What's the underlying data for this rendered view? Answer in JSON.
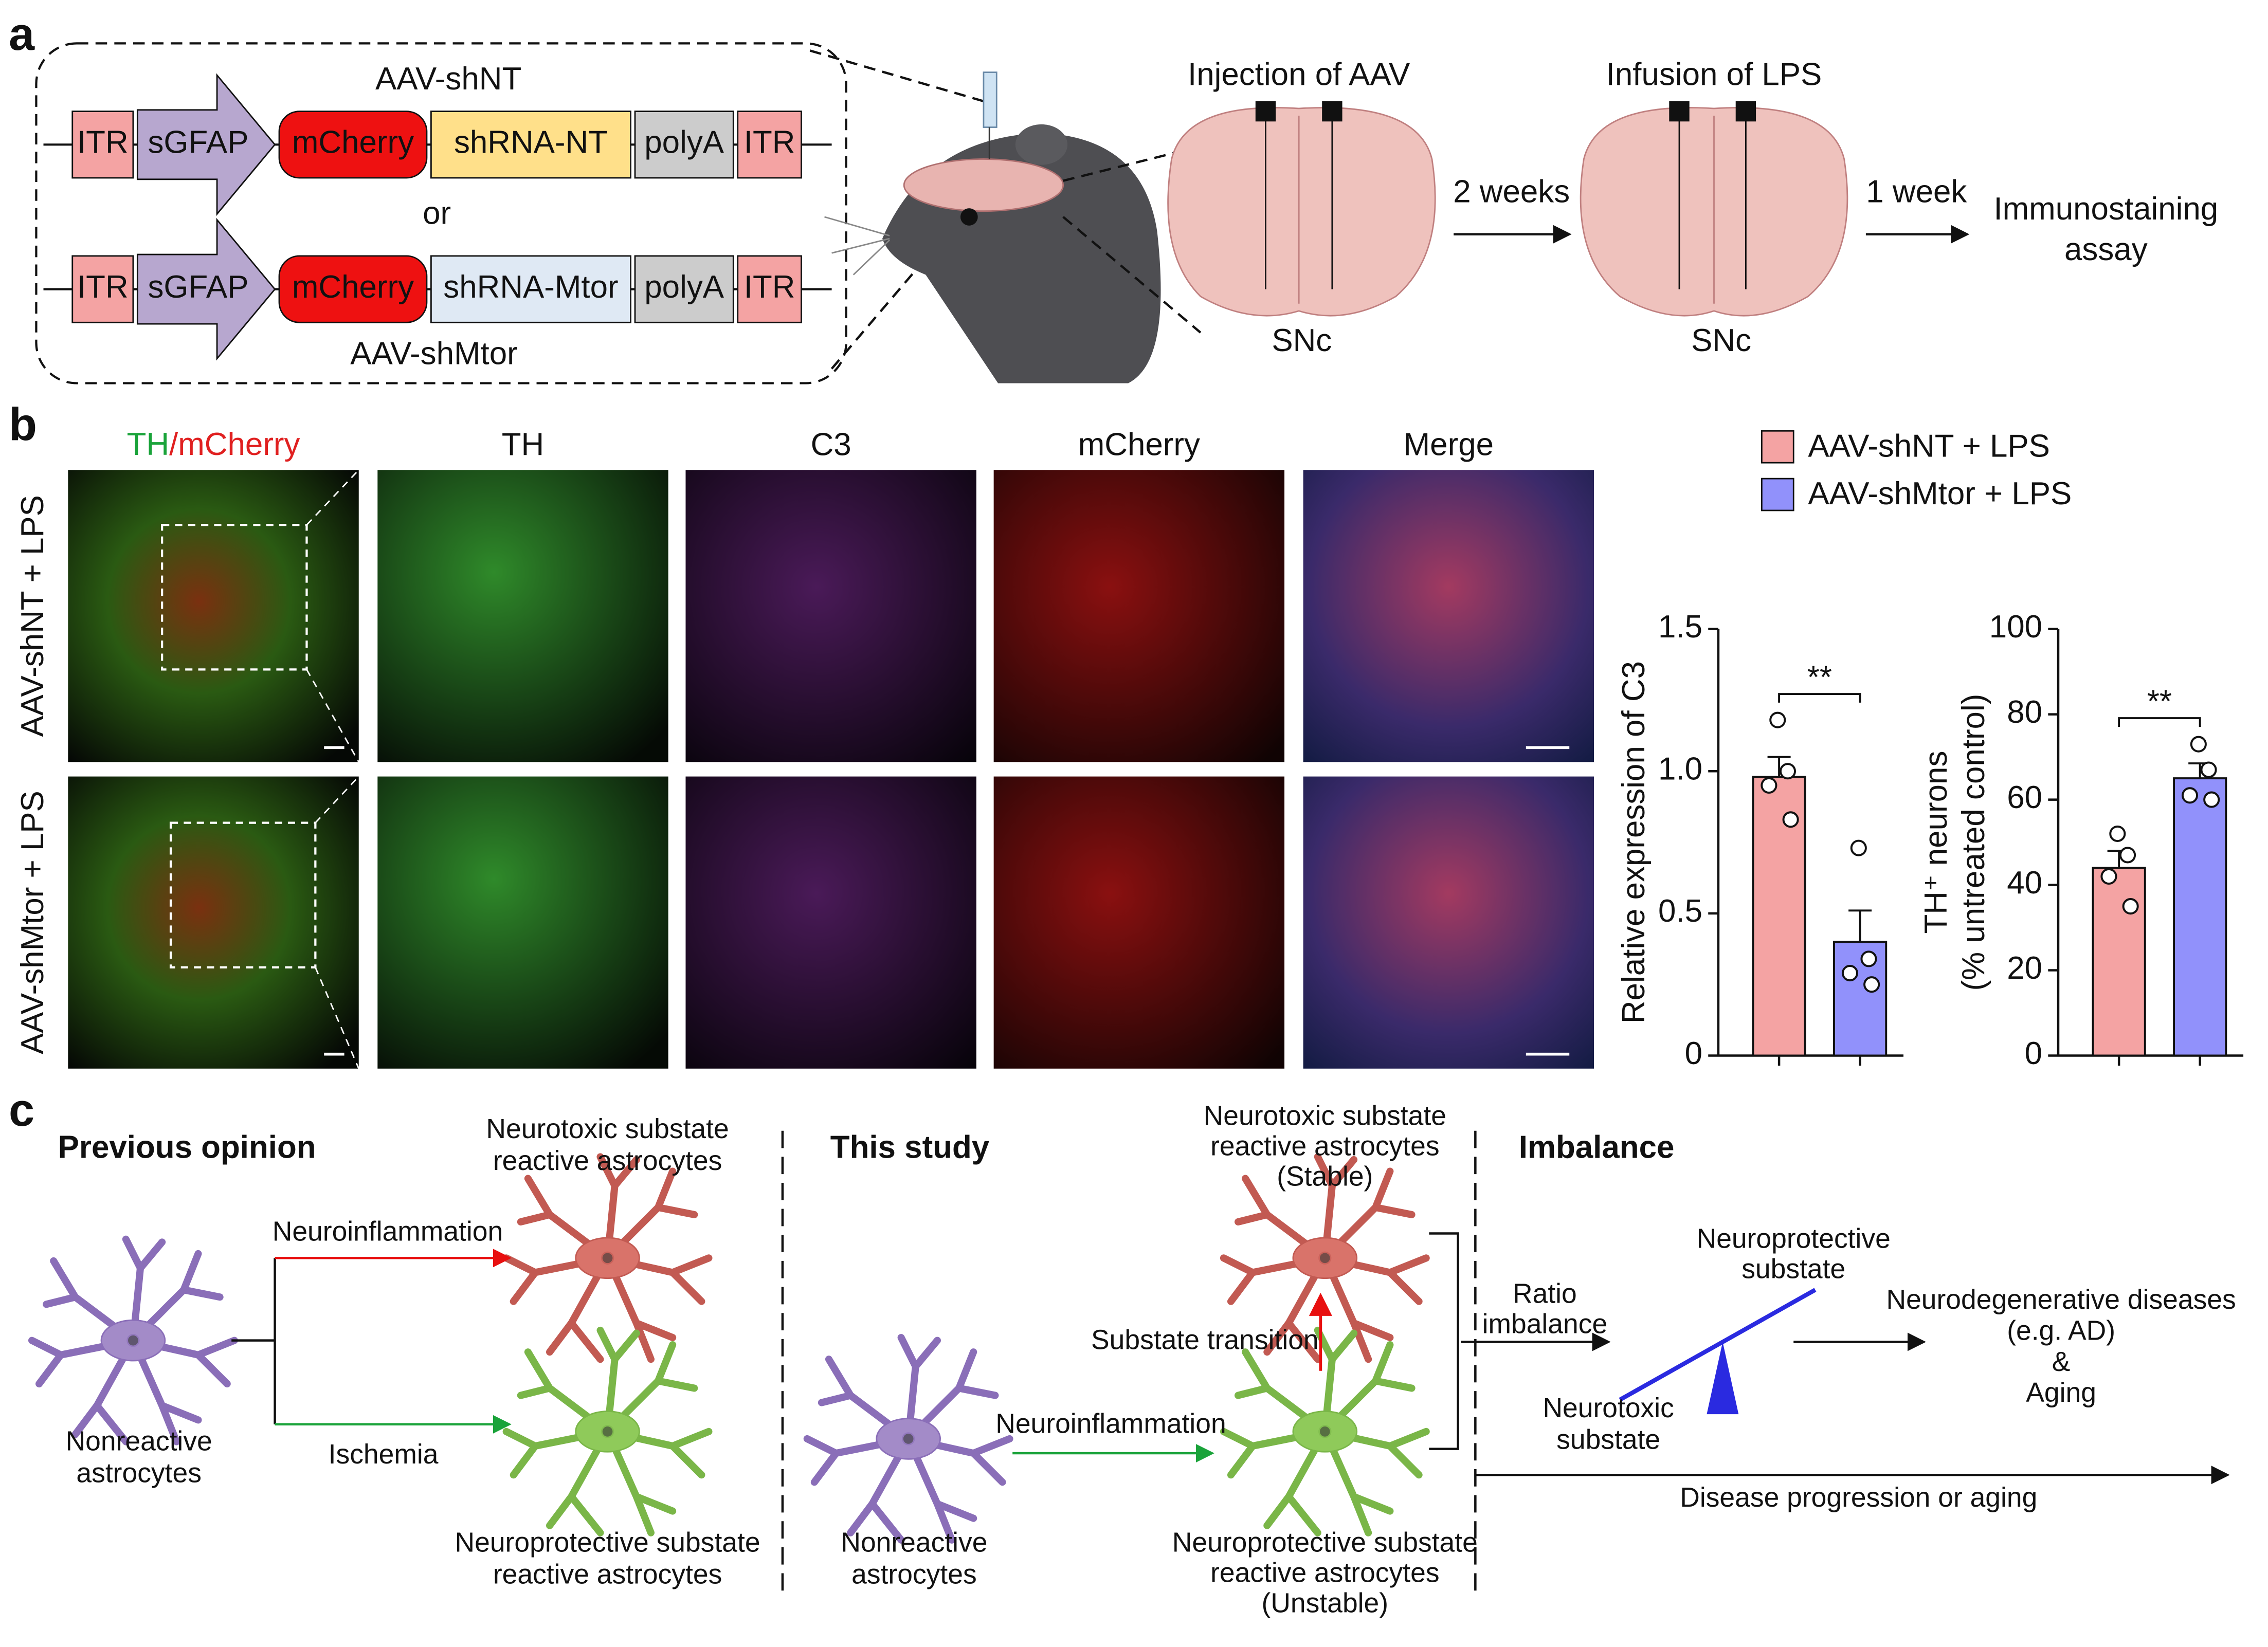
{
  "panel_a": {
    "label": "a",
    "constructs": [
      {
        "name": "AAV-shNT",
        "elements": [
          "ITR",
          "sGFAP",
          "mCherry",
          "shRNA-NT",
          "polyA",
          "ITR"
        ]
      },
      {
        "name": "AAV-shMtor",
        "elements": [
          "ITR",
          "sGFAP",
          "mCherry",
          "shRNA-Mtor",
          "polyA",
          "ITR"
        ]
      }
    ],
    "or": "or",
    "steps": [
      "Injection of AAV",
      "Infusion of LPS"
    ],
    "regions": [
      "SNc",
      "SNc"
    ],
    "intervals": [
      "2 weeks",
      "1 week"
    ],
    "readout": [
      "Immunostaining",
      "assay"
    ]
  },
  "panel_b": {
    "label": "b",
    "columns": [
      [
        "TH",
        "/",
        "mCherry"
      ],
      "TH",
      "C3",
      "mCherry",
      "Merge"
    ],
    "column_colors": [
      "#1aa33a",
      "#9c3ab0",
      "#e02020",
      "#111111"
    ],
    "rows": [
      "AAV-shNT + LPS",
      "AAV-shMtor + LPS"
    ],
    "legend": [
      {
        "name": "AAV-shNT + LPS",
        "color": "#f4a3a3"
      },
      {
        "name": "AAV-shMtor + LPS",
        "color": "#9191fb"
      }
    ]
  },
  "chart_data": [
    {
      "type": "bar",
      "ylabel": [
        "Relative expression of C3"
      ],
      "categories": [
        null,
        null
      ],
      "values": [
        0.98,
        0.4
      ],
      "errors": [
        0.07,
        0.11
      ],
      "points": [
        [
          1.18,
          1.0,
          0.95,
          0.83
        ],
        [
          0.73,
          0.34,
          0.29,
          0.25
        ]
      ],
      "ylim": [
        0,
        1.5
      ],
      "yticks": [
        0,
        0.5,
        {
          "value": 1,
          "label": "1.0"
        },
        1.5
      ],
      "annotation": "**"
    },
    {
      "type": "bar",
      "ylabel": [
        "TH⁺ neurons",
        "(% untreated control)"
      ],
      "categories": [
        null,
        null
      ],
      "values": [
        44,
        65
      ],
      "errors": [
        4,
        3.5
      ],
      "points": [
        [
          52,
          47,
          42,
          35
        ],
        [
          73,
          67,
          61,
          60
        ]
      ],
      "ylim": [
        0,
        100
      ],
      "yticks": [
        0,
        20,
        40,
        60,
        80,
        100
      ],
      "annotation": "**"
    }
  ],
  "panel_c": {
    "label": "c",
    "previous": {
      "title": "Previous opinion",
      "toxic": [
        "Neurotoxic substate",
        "reactive astrocytes"
      ],
      "stimuli": [
        "Neuroinflammation",
        "Ischemia"
      ],
      "nonreactive": [
        "Nonreactive",
        "astrocytes"
      ],
      "protective": [
        "Neuroprotective substate",
        "reactive astrocytes"
      ]
    },
    "study": {
      "title": "This study",
      "toxic": [
        "Neurotoxic substate",
        "reactive astrocytes",
        "(Stable)"
      ],
      "transition": "Substate transition",
      "stimulus": "Neuroinflammation",
      "nonreactive": [
        "Nonreactive",
        "astrocytes"
      ],
      "protective": [
        "Neuroprotective substate",
        "reactive astrocytes",
        "(Unstable)"
      ]
    },
    "imbalance": {
      "title": "Imbalance",
      "ratio": [
        "Ratio",
        "imbalance"
      ],
      "protective": [
        "Neuroprotective",
        "substate"
      ],
      "toxic": [
        "Neurotoxic",
        "substate"
      ],
      "outcome": [
        "Neurodegenerative diseases",
        "(e.g. AD)",
        "&",
        "Aging"
      ],
      "axis": "Disease progression or aging"
    }
  }
}
